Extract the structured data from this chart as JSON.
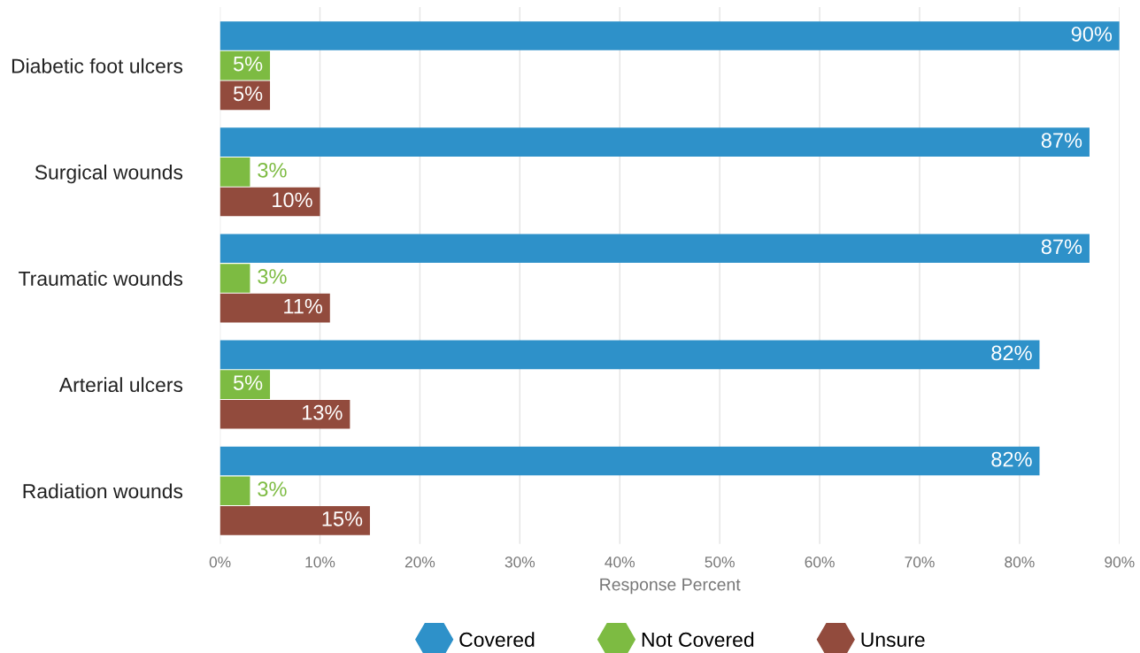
{
  "chart_data": {
    "type": "bar",
    "orientation": "horizontal",
    "xlabel": "Response Percent",
    "categories": [
      "Diabetic foot ulcers",
      "Surgical wounds",
      "Traumatic wounds",
      "Arterial ulcers",
      "Radiation wounds"
    ],
    "series": [
      {
        "name": "Covered",
        "color": "#2e91c9",
        "values": [
          90,
          87,
          87,
          82,
          82
        ],
        "value_labels": [
          "90%",
          "87%",
          "87%",
          "82%",
          "82%"
        ]
      },
      {
        "name": "Not Covered",
        "color": "#7dbb42",
        "values": [
          5,
          3,
          3,
          5,
          3
        ],
        "value_labels": [
          "5%",
          "3%",
          "3%",
          "5%",
          "3%"
        ]
      },
      {
        "name": "Unsure",
        "color": "#924b3d",
        "values": [
          5,
          10,
          11,
          13,
          15
        ],
        "value_labels": [
          "5%",
          "10%",
          "11%",
          "13%",
          "15%"
        ]
      }
    ],
    "xlim": [
      0,
      90
    ],
    "xticks": [
      {
        "value": 0,
        "label": "0%"
      },
      {
        "value": 10,
        "label": "10%"
      },
      {
        "value": 20,
        "label": "20%"
      },
      {
        "value": 30,
        "label": "30%"
      },
      {
        "value": 40,
        "label": "40%"
      },
      {
        "value": 50,
        "label": "50%"
      },
      {
        "value": 60,
        "label": "60%"
      },
      {
        "value": 70,
        "label": "70%"
      },
      {
        "value": 80,
        "label": "80%"
      },
      {
        "value": 90,
        "label": "90%"
      }
    ],
    "grid": "x",
    "legend": "bottom",
    "marker": "hexagon"
  }
}
